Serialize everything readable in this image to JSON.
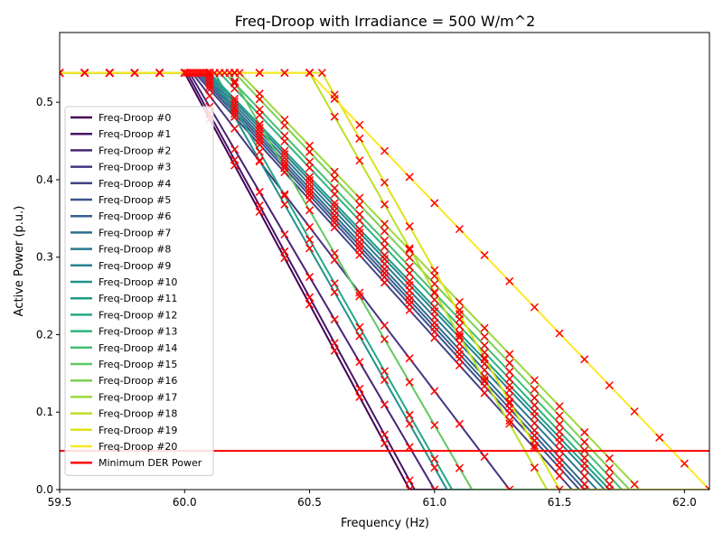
{
  "chart_data": {
    "type": "line",
    "title": "Freq-Droop with Irradiance = 500 W/m^2",
    "xlabel": "Frequency (Hz)",
    "ylabel": "Active Power (p.u.)",
    "xlim": [
      59.5,
      62.1
    ],
    "ylim": [
      0,
      0.59
    ],
    "xticks": [
      "59.5",
      "60.0",
      "60.5",
      "61.0",
      "61.5",
      "62.0"
    ],
    "yticks": [
      "0.0",
      "0.1",
      "0.2",
      "0.3",
      "0.4",
      "0.5"
    ],
    "grid": false,
    "legend_position": "lower-left",
    "marker": "x",
    "marker_color": "#ff0000",
    "p_max": 0.538,
    "series": [
      {
        "name": "Freq-Droop #0",
        "color": "#440154",
        "knee": 60.0,
        "zero": 60.9
      },
      {
        "name": "Freq-Droop #1",
        "color": "#471365",
        "knee": 60.01,
        "zero": 60.92
      },
      {
        "name": "Freq-Droop #2",
        "color": "#482475",
        "knee": 60.02,
        "zero": 61.0
      },
      {
        "name": "Freq-Droop #3",
        "color": "#463480",
        "knee": 60.03,
        "zero": 61.3
      },
      {
        "name": "Freq-Droop #4",
        "color": "#414487",
        "knee": 60.04,
        "zero": 61.55
      },
      {
        "name": "Freq-Droop #5",
        "color": "#3b528b",
        "knee": 60.05,
        "zero": 61.58
      },
      {
        "name": "Freq-Droop #6",
        "color": "#355f8d",
        "knee": 60.06,
        "zero": 61.6
      },
      {
        "name": "Freq-Droop #7",
        "color": "#2f6c8e",
        "knee": 60.07,
        "zero": 61.62
      },
      {
        "name": "Freq-Droop #8",
        "color": "#2a788e",
        "knee": 60.08,
        "zero": 61.65
      },
      {
        "name": "Freq-Droop #9",
        "color": "#25848e",
        "knee": 60.09,
        "zero": 61.68
      },
      {
        "name": "Freq-Droop #10",
        "color": "#21918c",
        "knee": 60.1,
        "zero": 61.05
      },
      {
        "name": "Freq-Droop #11",
        "color": "#1e9c89",
        "knee": 60.1,
        "zero": 61.7
      },
      {
        "name": "Freq-Droop #12",
        "color": "#22a884",
        "knee": 60.12,
        "zero": 61.07
      },
      {
        "name": "Freq-Droop #13",
        "color": "#2fb47c",
        "knee": 60.14,
        "zero": 61.72
      },
      {
        "name": "Freq-Droop #14",
        "color": "#44bf70",
        "knee": 60.16,
        "zero": 61.75
      },
      {
        "name": "Freq-Droop #15",
        "color": "#5ec962",
        "knee": 60.18,
        "zero": 61.15
      },
      {
        "name": "Freq-Droop #16",
        "color": "#7ad151",
        "knee": 60.2,
        "zero": 61.78
      },
      {
        "name": "Freq-Droop #17",
        "color": "#9bd93c",
        "knee": 60.22,
        "zero": 61.82
      },
      {
        "name": "Freq-Droop #18",
        "color": "#bddf26",
        "knee": 60.5,
        "zero": 61.45
      },
      {
        "name": "Freq-Droop #19",
        "color": "#dfe318",
        "knee": 60.55,
        "zero": 61.5
      },
      {
        "name": "Freq-Droop #20",
        "color": "#fde725",
        "knee": 60.5,
        "zero": 62.1
      }
    ],
    "min_der_power": {
      "name": "Minimum DER Power",
      "value": 0.05,
      "color": "#ff0000"
    }
  }
}
